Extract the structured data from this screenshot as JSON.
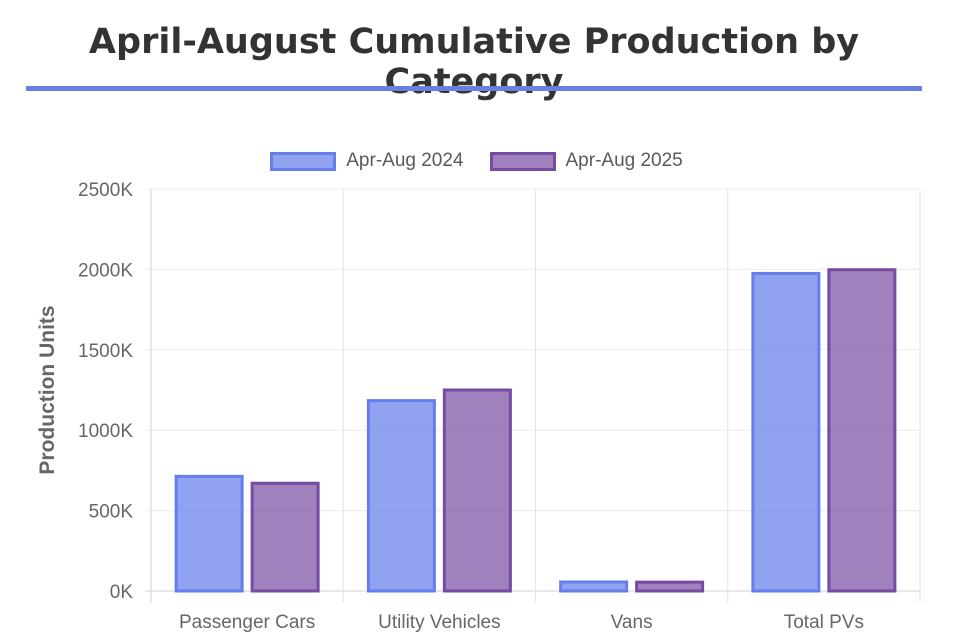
{
  "page_title": "April-August Cumulative Production by Category",
  "colors": {
    "series_fill": [
      "rgba(102,126,234,0.72)",
      "rgba(118,75,162,0.7)"
    ],
    "series_border": [
      "#667eea",
      "#764ba2"
    ],
    "title_rule": "#6b7fe0"
  },
  "chart_data": {
    "type": "bar",
    "title": "",
    "xlabel": "",
    "ylabel": "Production Units",
    "categories": [
      "Passenger Cars",
      "Utility Vehicles",
      "Vans",
      "Total PVs"
    ],
    "series": [
      {
        "name": "Apr-Aug 2024",
        "values": [
          713000,
          1184000,
          56000,
          1975000
        ]
      },
      {
        "name": "Apr-Aug 2025",
        "values": [
          670000,
          1250000,
          55000,
          1998000
        ]
      }
    ],
    "ylim": [
      0,
      2500000
    ],
    "yticks": [
      0,
      500000,
      1000000,
      1500000,
      2000000,
      2500000
    ],
    "ytick_labels": [
      "0K",
      "500K",
      "1000K",
      "1500K",
      "2000K",
      "2500K"
    ],
    "grid": true,
    "legend_position": "top"
  }
}
